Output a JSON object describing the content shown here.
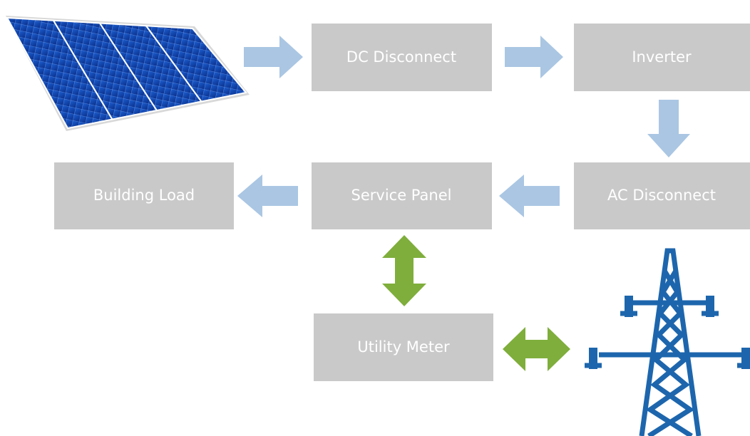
{
  "nodes": [
    {
      "label": "DC Disconnect"
    },
    {
      "label": "Inverter"
    },
    {
      "label": "AC Disconnect"
    },
    {
      "label": "Service Panel"
    },
    {
      "label": "Building Load"
    },
    {
      "label": "Utility Meter"
    }
  ]
}
